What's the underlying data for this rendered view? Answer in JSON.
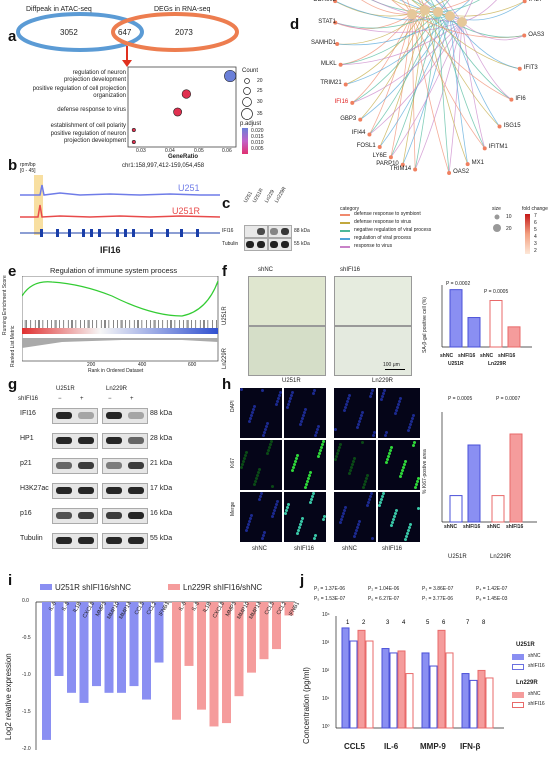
{
  "panel_letters": [
    "a",
    "b",
    "c",
    "d",
    "e",
    "f",
    "g",
    "h",
    "i",
    "j"
  ],
  "a": {
    "venn_left_label": "Diffpeak in ATAC-seq",
    "venn_right_label": "DEGs in RNA-seq",
    "venn_left": "3052",
    "venn_mid": "647",
    "venn_right": "2073",
    "terms": [
      "regulation of neuron projection development",
      "positive regulation of cell projection organization",
      "defense response to virus",
      "establishment of cell polarity",
      "positive regulation of neuron projection development"
    ],
    "xlabel": "GeneRatio",
    "xticks": [
      "0.03",
      "0.04",
      "0.05",
      "0.06"
    ],
    "count_title": "Count",
    "count_values": [
      "20",
      "25",
      "30",
      "35"
    ],
    "padj_title": "p.adjust",
    "padj_ticks": [
      "0.020",
      "0.015",
      "0.010",
      "0.005"
    ]
  },
  "b": {
    "coord": "chr1:158,997,412-159,054,458",
    "y_label": "rpm/bp",
    "y_max": "[0 - 45]",
    "track1": "U251",
    "track2": "U251R",
    "gene": "IFI16"
  },
  "c": {
    "lanes": [
      "U251",
      "U251R",
      "Ln229",
      "Ln229R"
    ],
    "rows": [
      "IFI16",
      "Tubulin"
    ],
    "kda": [
      "88 kDa",
      "55 kDa"
    ]
  },
  "d": {
    "genes_left": [
      "TRIM14",
      "PARP10",
      "LY6E",
      "FOSL1",
      "IFI44",
      "GBP3",
      "IFI16",
      "TRIM21",
      "MLKL",
      "SAMHD1",
      "STAT1",
      "DDX60L",
      "PLSCR1",
      "NLRC5",
      "TRIM22",
      "IFIT2",
      "IFIH1",
      "DDX60",
      "BST2",
      "GBP1"
    ],
    "genes_right": [
      "OAS2",
      "MX1",
      "IFITM1",
      "ISG15",
      "IFI6",
      "IFIT3",
      "OAS3",
      "IFI27",
      "IFI44L",
      "IFIT1",
      "IFITM3"
    ],
    "category_title": "category",
    "categories": [
      "defense response to symbiont",
      "defense response to virus",
      "negative regulation of viral process",
      "regulation of viral process",
      "response to virus"
    ],
    "category_colors": [
      "#f08a6e",
      "#c2a83e",
      "#4cb89a",
      "#4ea4d9",
      "#c882c8"
    ],
    "size_title": "size",
    "size_values": [
      "10",
      "20"
    ],
    "fold_title": "fold change",
    "fold_ticks": [
      "7",
      "6",
      "5",
      "4",
      "3",
      "2"
    ]
  },
  "e": {
    "title": "Regulation of immune system process",
    "y1": "Running Enrichment Score",
    "y2": "Ranked List Metric",
    "xlabel": "Rank in Ordered Dataset",
    "xticks": [
      "200",
      "400",
      "600"
    ]
  },
  "f": {
    "cols": [
      "shNC",
      "shIFI16"
    ],
    "rows": [
      "U251R",
      "Ln229R"
    ],
    "scale": "100 μm",
    "ylabel": "SA-β-gal positive cell (%)",
    "p1": "P = 0.0002",
    "p2": "P = 0.0005",
    "groups": [
      "U251R",
      "Ln229R"
    ],
    "bars": [
      "shNC",
      "shIFI16",
      "shNC",
      "shIFI16"
    ],
    "yticks": [
      "0",
      "10",
      "20",
      "30",
      "40"
    ]
  },
  "g": {
    "lines": [
      "U251R",
      "Ln229R"
    ],
    "sh_label": "shIFI16",
    "signs": [
      "−",
      "+",
      "−",
      "+"
    ],
    "rows": [
      "IFI16",
      "HP1",
      "p21",
      "H3K27ac",
      "p16",
      "Tubulin"
    ],
    "kda": [
      "88 kDa",
      "28 kDa",
      "21 kDa",
      "17 kDa",
      "16 kDa",
      "55 kDa"
    ]
  },
  "h": {
    "lines": [
      "U251R",
      "Ln229R"
    ],
    "rows": [
      "DAPI",
      "Ki67",
      "Merge"
    ],
    "cols": [
      "shNC",
      "shIFI16",
      "shNC",
      "shIFI16"
    ],
    "ylabel": "% Ki67-postive area",
    "p1": "P = 0.0005",
    "p2": "P = 0.0007",
    "yticks": [
      "0",
      "10",
      "20",
      "30",
      "40",
      "50"
    ],
    "bars": [
      "shNC",
      "shIFI16",
      "shNC",
      "shIFI16"
    ],
    "groups": [
      "U251R",
      "Ln229R"
    ]
  },
  "i": {
    "ylabel": "Log2 relative expression",
    "legend": [
      "U251R shIFI16/shNC",
      "Ln229R shIFI16/shNC"
    ],
    "yticks": [
      "0.0",
      "-0.5",
      "-1.0",
      "-1.5",
      "-2.0"
    ],
    "categories": [
      "IL-6",
      "IL-8",
      "IL1B",
      "CXCL8",
      "MMP3",
      "MMP10",
      "MMP14",
      "CCL5",
      "CCL2",
      "IFNB1"
    ]
  },
  "j": {
    "pvalues": [
      "P₁ = 1.37E-06",
      "P₂ = 1.04E-06",
      "P₃ = 3.86E-07",
      "P₄ = 1.42E-07",
      "P₅ = 1.53E-07",
      "P₆ = 6.27E-07",
      "P₇ = 3.77E-06",
      "P₈ = 1.45E-03"
    ],
    "ylabel": "Concentration (pg/ml)",
    "yticks": [
      "10⁴",
      "10³",
      "10²",
      "10¹",
      "10⁰"
    ],
    "groups": [
      "CCL5",
      "IL-6",
      "MMP-9",
      "IFN-β"
    ],
    "legend_u": "U251R",
    "legend_l": "Ln229R",
    "legend_items": [
      "shNC",
      "shIFI16",
      "shNC",
      "shIFI16"
    ],
    "bar_numbers": [
      "1",
      "2",
      "3",
      "4",
      "5",
      "6",
      "7",
      "8"
    ]
  },
  "chart_data": [
    {
      "type": "scatter",
      "panel": "a",
      "xlabel": "GeneRatio",
      "categories": [
        "regulation of neuron projection development",
        "positive regulation of cell projection organization",
        "defense response to virus",
        "establishment of cell polarity",
        "positive regulation of neuron projection development"
      ],
      "x": [
        0.06,
        0.045,
        0.042,
        0.027,
        0.027
      ],
      "count": [
        34,
        28,
        27,
        17,
        17
      ],
      "xlim": [
        0.025,
        0.062
      ]
    },
    {
      "type": "bar",
      "panel": "f",
      "categories": [
        "U251R shNC",
        "U251R shIFI16",
        "Ln229R shNC",
        "Ln229R shIFI16"
      ],
      "values": [
        37,
        19,
        30,
        13
      ],
      "ylabel": "SA-β-gal positive cell (%)",
      "ylim": [
        0,
        40
      ]
    },
    {
      "type": "bar",
      "panel": "h",
      "categories": [
        "U251R shNC",
        "U251R shIFI16",
        "Ln229R shNC",
        "Ln229R shIFI16"
      ],
      "values": [
        12,
        35,
        12,
        40
      ],
      "ylabel": "% Ki67-postive area",
      "ylim": [
        0,
        50
      ]
    },
    {
      "type": "bar",
      "panel": "i",
      "categories": [
        "IL-6",
        "IL-8",
        "IL1B",
        "CXCL8",
        "MMP3",
        "MMP10",
        "MMP14",
        "CCL5",
        "CCL2",
        "IFNB1"
      ],
      "series": [
        {
          "name": "U251R shIFI16/shNC",
          "values": [
            -2.05,
            -1.1,
            -1.35,
            -1.5,
            -1.25,
            -1.35,
            -1.35,
            -1.25,
            -1.45,
            -0.9
          ]
        },
        {
          "name": "Ln229R shIFI16/shNC",
          "values": [
            -1.75,
            -0.95,
            -1.6,
            -1.85,
            -1.8,
            -1.4,
            -1.05,
            -0.85,
            -0.7,
            -0.2
          ]
        }
      ],
      "ylabel": "Log2 relative expression",
      "ylim": [
        -2.2,
        0
      ]
    },
    {
      "type": "bar",
      "panel": "j",
      "categories": [
        "CCL5",
        "IL-6",
        "MMP-9",
        "IFN-β"
      ],
      "series": [
        {
          "name": "U251R shNC",
          "values": [
            10000,
            1500,
            1000,
            150
          ]
        },
        {
          "name": "U251R shIFI16",
          "values": [
            3000,
            1000,
            300,
            80
          ]
        },
        {
          "name": "Ln229R shNC",
          "values": [
            8000,
            1200,
            8000,
            200
          ]
        },
        {
          "name": "Ln229R shIFI16",
          "values": [
            3000,
            150,
            1000,
            100
          ]
        }
      ],
      "ylabel": "Concentration (pg/ml)",
      "yscale": "log",
      "ylim": [
        1,
        30000
      ]
    }
  ]
}
